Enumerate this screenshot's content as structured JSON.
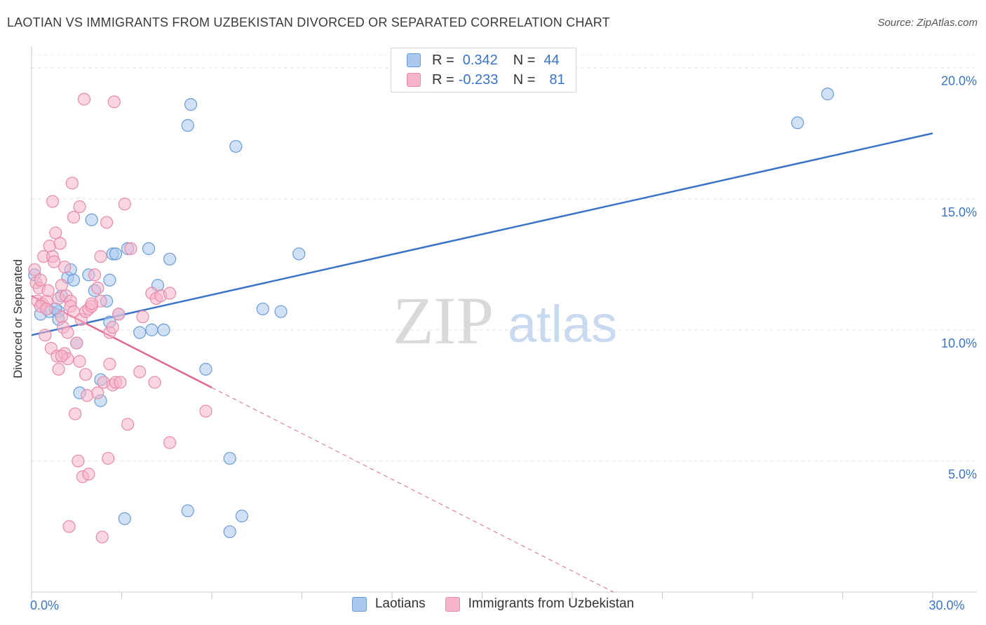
{
  "title": "LAOTIAN VS IMMIGRANTS FROM UZBEKISTAN DIVORCED OR SEPARATED CORRELATION CHART",
  "source": "Source: ZipAtlas.com",
  "watermark": {
    "zip": "ZIP",
    "atlas": "atlas"
  },
  "colors": {
    "blue": "#3a74c9",
    "blue_fill": "#aac8ee",
    "pink": "#e06890",
    "pink_fill": "#f5b4c8",
    "grid": "#e6e6e6",
    "axis": "#bbbbbb"
  },
  "legend_top": {
    "rows": [
      {
        "r_label": "R =",
        "r_value": "0.342",
        "n_label": "N =",
        "n_value": "44",
        "color": "#aac8ee",
        "stroke": "#6b9bd6"
      },
      {
        "r_label": "R =",
        "r_value": "-0.233",
        "n_label": "N =",
        "n_value": "81",
        "color": "#f5b4c8",
        "stroke": "#e88aa8"
      }
    ]
  },
  "legend_bottom": [
    {
      "label": "Laotians",
      "color": "#aac8ee",
      "stroke": "#6b9bd6"
    },
    {
      "label": "Immigrants from Uzbekistan",
      "color": "#f5b4c8",
      "stroke": "#e88aa8"
    }
  ],
  "chart_data": {
    "type": "scatter",
    "title": "LAOTIAN VS IMMIGRANTS FROM UZBEKISTAN DIVORCED OR SEPARATED CORRELATION CHART",
    "xlabel": "",
    "ylabel": "Divorced or Separated",
    "xlim": [
      0,
      30
    ],
    "ylim": [
      0,
      20.5
    ],
    "x_tick_labels": [
      {
        "value": 0,
        "label": "0.0%"
      },
      {
        "value": 30,
        "label": "30.0%"
      }
    ],
    "x_minor_ticks": [
      0,
      3,
      6,
      9,
      12,
      15,
      18,
      21,
      24,
      27,
      30
    ],
    "y_ticks": [
      {
        "value": 5,
        "label": "5.0%"
      },
      {
        "value": 10,
        "label": "10.0%"
      },
      {
        "value": 15,
        "label": "15.0%"
      },
      {
        "value": 20,
        "label": "20.0%"
      }
    ],
    "series": [
      {
        "name": "Laotians",
        "color": "#aac8ee",
        "stroke": "#6b9bd6",
        "points": [
          [
            0.3,
            10.6
          ],
          [
            0.6,
            10.7
          ],
          [
            0.9,
            10.7
          ],
          [
            0.8,
            10.8
          ],
          [
            1.0,
            11.3
          ],
          [
            1.2,
            12.0
          ],
          [
            1.3,
            12.3
          ],
          [
            1.4,
            11.9
          ],
          [
            0.9,
            10.4
          ],
          [
            1.5,
            9.5
          ],
          [
            1.6,
            7.6
          ],
          [
            1.9,
            12.1
          ],
          [
            2.0,
            14.2
          ],
          [
            2.1,
            11.5
          ],
          [
            2.3,
            8.1
          ],
          [
            2.5,
            11.1
          ],
          [
            2.6,
            11.9
          ],
          [
            2.6,
            10.3
          ],
          [
            2.7,
            12.9
          ],
          [
            2.8,
            12.9
          ],
          [
            2.9,
            10.6
          ],
          [
            3.1,
            2.8
          ],
          [
            3.2,
            13.1
          ],
          [
            3.6,
            9.9
          ],
          [
            3.9,
            13.1
          ],
          [
            4.0,
            10.0
          ],
          [
            4.2,
            11.7
          ],
          [
            4.4,
            10.0
          ],
          [
            4.6,
            12.7
          ],
          [
            5.2,
            3.1
          ],
          [
            5.2,
            17.8
          ],
          [
            5.3,
            18.6
          ],
          [
            5.8,
            8.5
          ],
          [
            6.6,
            5.1
          ],
          [
            6.6,
            2.3
          ],
          [
            6.8,
            17.0
          ],
          [
            7.0,
            2.9
          ],
          [
            7.7,
            10.8
          ],
          [
            8.3,
            10.7
          ],
          [
            8.9,
            12.9
          ],
          [
            25.5,
            17.9
          ],
          [
            26.5,
            19.0
          ],
          [
            2.3,
            7.3
          ],
          [
            0.1,
            12.1
          ]
        ],
        "trend": {
          "x0": 0,
          "y0": 9.8,
          "x1": 30,
          "y1": 17.5
        }
      },
      {
        "name": "Immigrants from Uzbekistan",
        "color": "#f5b4c8",
        "stroke": "#e88aa8",
        "points": [
          [
            0.1,
            12.3
          ],
          [
            0.15,
            11.8
          ],
          [
            0.2,
            11.1
          ],
          [
            0.25,
            11.6
          ],
          [
            0.3,
            11.9
          ],
          [
            0.35,
            11.0
          ],
          [
            0.4,
            12.8
          ],
          [
            0.45,
            9.8
          ],
          [
            0.5,
            11.1
          ],
          [
            0.55,
            11.5
          ],
          [
            0.6,
            13.2
          ],
          [
            0.65,
            9.3
          ],
          [
            0.7,
            12.8
          ],
          [
            0.7,
            14.9
          ],
          [
            0.75,
            12.6
          ],
          [
            0.8,
            13.7
          ],
          [
            0.85,
            9.0
          ],
          [
            0.9,
            8.5
          ],
          [
            0.9,
            11.2
          ],
          [
            0.95,
            13.3
          ],
          [
            1.0,
            11.7
          ],
          [
            1.0,
            10.5
          ],
          [
            1.05,
            10.1
          ],
          [
            1.1,
            9.1
          ],
          [
            1.1,
            12.4
          ],
          [
            1.15,
            11.3
          ],
          [
            1.2,
            9.9
          ],
          [
            1.2,
            8.9
          ],
          [
            1.25,
            2.5
          ],
          [
            1.3,
            11.1
          ],
          [
            1.3,
            10.9
          ],
          [
            1.35,
            15.6
          ],
          [
            1.4,
            14.3
          ],
          [
            1.4,
            10.7
          ],
          [
            1.45,
            6.8
          ],
          [
            1.5,
            9.5
          ],
          [
            1.55,
            5.0
          ],
          [
            1.6,
            14.7
          ],
          [
            1.6,
            8.8
          ],
          [
            1.65,
            10.4
          ],
          [
            1.7,
            4.4
          ],
          [
            1.75,
            18.8
          ],
          [
            1.8,
            10.7
          ],
          [
            1.8,
            8.3
          ],
          [
            1.85,
            7.5
          ],
          [
            1.9,
            4.5
          ],
          [
            1.9,
            10.8
          ],
          [
            2.0,
            10.9
          ],
          [
            2.1,
            12.1
          ],
          [
            2.2,
            7.6
          ],
          [
            2.2,
            11.6
          ],
          [
            2.3,
            11.1
          ],
          [
            2.3,
            12.8
          ],
          [
            2.35,
            2.1
          ],
          [
            2.4,
            8.0
          ],
          [
            2.5,
            14.1
          ],
          [
            2.55,
            5.1
          ],
          [
            2.6,
            8.7
          ],
          [
            2.6,
            9.9
          ],
          [
            2.7,
            10.1
          ],
          [
            2.7,
            7.9
          ],
          [
            2.75,
            18.7
          ],
          [
            2.8,
            8.0
          ],
          [
            2.9,
            10.6
          ],
          [
            2.95,
            8.0
          ],
          [
            3.1,
            14.8
          ],
          [
            3.2,
            6.4
          ],
          [
            3.3,
            13.1
          ],
          [
            3.6,
            8.4
          ],
          [
            3.7,
            10.5
          ],
          [
            4.0,
            11.4
          ],
          [
            4.1,
            8.0
          ],
          [
            4.15,
            11.2
          ],
          [
            4.3,
            11.3
          ],
          [
            4.6,
            11.4
          ],
          [
            4.6,
            5.7
          ],
          [
            5.8,
            6.9
          ],
          [
            0.3,
            10.9
          ],
          [
            1.0,
            9.0
          ],
          [
            2.0,
            11.0
          ],
          [
            0.5,
            10.8
          ]
        ],
        "trend_solid": {
          "x0": 0,
          "y0": 11.3,
          "x1": 6.0,
          "y1": 7.8
        },
        "trend_dashed": {
          "x0": 6.0,
          "y0": 7.8,
          "x1": 30,
          "y1": -6.2
        }
      }
    ]
  }
}
